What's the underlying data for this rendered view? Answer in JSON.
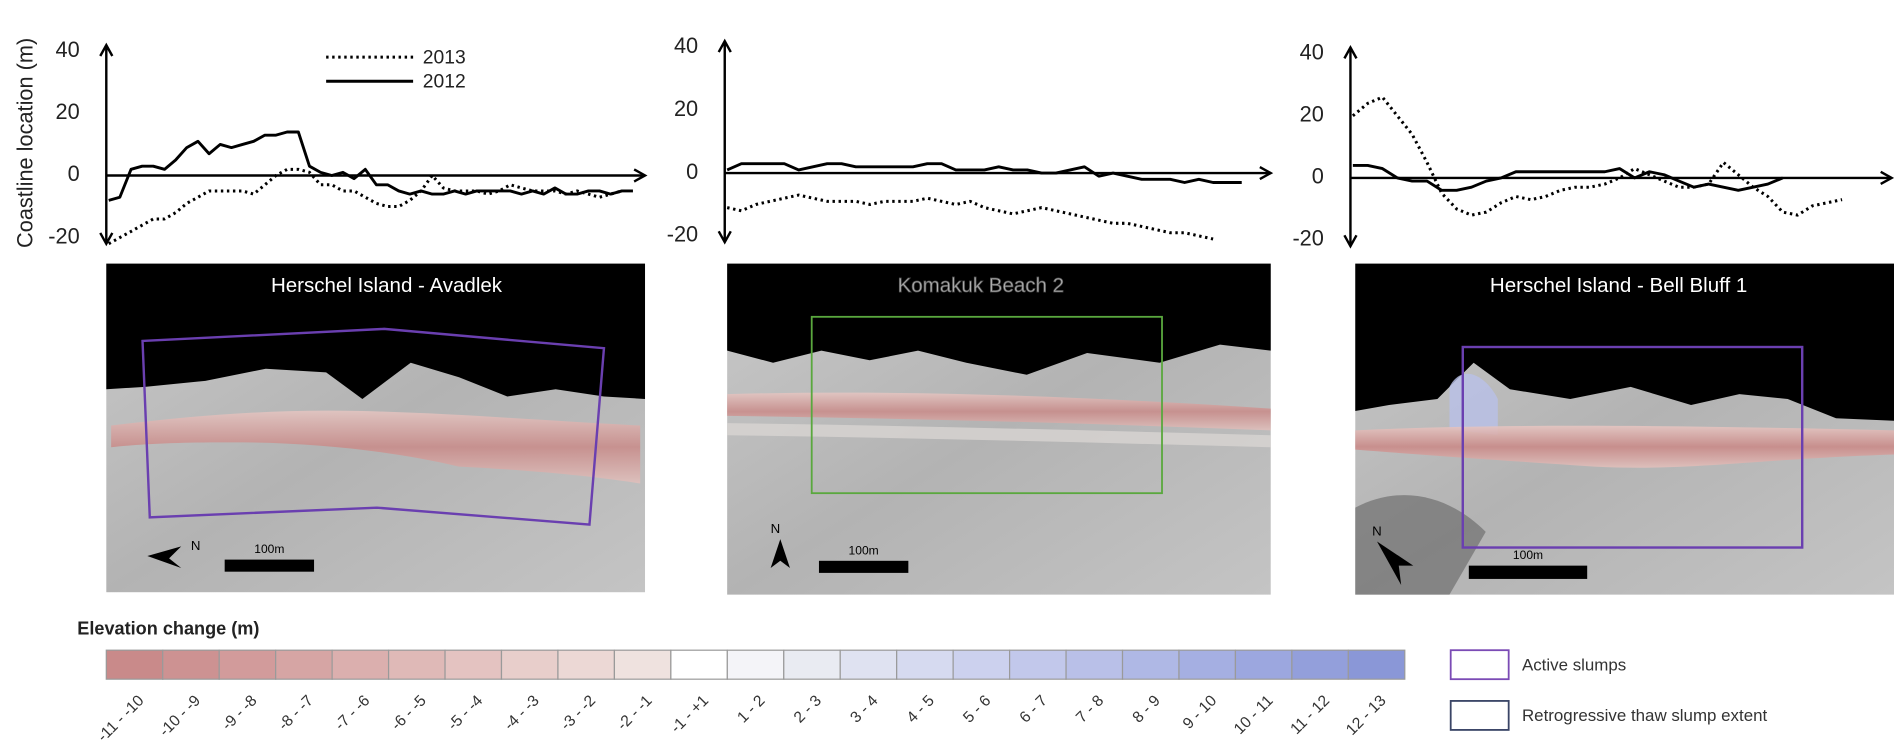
{
  "chart_data": [
    {
      "type": "line",
      "ylabel": "Coastline location (m)",
      "ylim": [
        -22,
        42
      ],
      "yticks": [
        -20,
        0,
        20,
        40
      ],
      "legend": true,
      "series": [
        {
          "name": "2013",
          "style": "dotted",
          "color": "#000000",
          "values": [
            -22,
            -20,
            -18,
            -16,
            -14,
            -14,
            -12,
            -9,
            -7,
            -5,
            -5,
            -5,
            -5,
            -6,
            -3,
            0,
            2,
            2,
            1,
            -3,
            -3,
            -5,
            -5,
            -7,
            -9,
            -10,
            -10,
            -8,
            -5,
            0,
            -4,
            -5,
            -5,
            -5,
            -6,
            -5,
            -3,
            -4,
            -5,
            -5,
            -5,
            -6,
            -5,
            -6,
            -7,
            -6,
            -5,
            null
          ]
        },
        {
          "name": "2012",
          "style": "solid",
          "color": "#000000",
          "values": [
            -8,
            -7,
            2,
            3,
            3,
            2,
            5,
            9,
            11,
            7,
            10,
            9,
            10,
            11,
            13,
            13,
            14,
            14,
            3,
            1,
            0,
            1,
            -1,
            2,
            -3,
            -3,
            -5,
            -6,
            -5,
            -6,
            -6,
            -5,
            -6,
            -5,
            -5,
            -5,
            -5,
            -6,
            -5,
            -6,
            -4,
            -6,
            -6,
            -5,
            -5,
            -6,
            -5,
            -5
          ]
        }
      ]
    },
    {
      "type": "line",
      "ylim": [
        -22,
        42
      ],
      "yticks": [
        -20,
        0,
        20,
        40
      ],
      "series": [
        {
          "style": "dotted",
          "color": "#000000",
          "values": [
            -11,
            -12,
            -10,
            -9,
            -8,
            -7,
            -8,
            -9,
            -9,
            -9,
            -10,
            -9,
            -9,
            -9,
            -8,
            -9,
            -10,
            -9,
            -11,
            -12,
            -13,
            -12,
            -11,
            -12,
            -13,
            -14,
            -15,
            -16,
            -16,
            -17,
            -18,
            -19,
            -19,
            -20,
            -21,
            null,
            null
          ]
        },
        {
          "style": "solid",
          "color": "#000000",
          "values": [
            1,
            3,
            3,
            3,
            3,
            1,
            2,
            3,
            3,
            2,
            2,
            2,
            2,
            2,
            3,
            3,
            1,
            1,
            1,
            2,
            1,
            1,
            0,
            0,
            1,
            2,
            -1,
            0,
            -1,
            -2,
            -2,
            -2,
            -3,
            -2,
            -3,
            -3,
            -3
          ]
        }
      ]
    },
    {
      "type": "line",
      "ylim": [
        -22,
        42
      ],
      "yticks": [
        -20,
        0,
        20,
        40
      ],
      "series": [
        {
          "style": "dotted",
          "color": "#000000",
          "values": [
            20,
            24,
            26,
            20,
            14,
            5,
            -5,
            -10,
            -12,
            -11,
            -8,
            -6,
            -7,
            -6,
            -4,
            -3,
            -3,
            -2,
            0,
            3,
            1,
            -1,
            -3,
            -3,
            -2,
            5,
            1,
            -3,
            -6,
            -11,
            -12,
            -9,
            -8,
            -7
          ]
        },
        {
          "style": "solid",
          "color": "#000000",
          "values": [
            4,
            4,
            3,
            0,
            -1,
            -1,
            -4,
            -4,
            -3,
            -1,
            0,
            2,
            2,
            2,
            2,
            2,
            2,
            2,
            3,
            0,
            2,
            1,
            -1,
            -3,
            -2,
            -3,
            -4,
            -3,
            -2,
            0,
            null,
            null,
            null,
            null
          ]
        }
      ]
    }
  ],
  "maps": [
    {
      "title": "Herschel Island - Avadlek",
      "scale_label": "100m",
      "north": "N"
    },
    {
      "title": "Komakuk Beach 2",
      "scale_label": "100m",
      "north": "N"
    },
    {
      "title": "Herschel Island - Bell Bluff 1",
      "scale_label": "100m",
      "north": "N"
    }
  ],
  "legend": {
    "title": "Elevation change (m)",
    "classes": [
      {
        "label": "-11 - -10",
        "color": "#c98a8a"
      },
      {
        "label": "-10 - -9",
        "color": "#cd9292"
      },
      {
        "label": "-9 - -8",
        "color": "#d29b9b"
      },
      {
        "label": "-8 - -7",
        "color": "#d6a5a4"
      },
      {
        "label": "-7 - -6",
        "color": "#dbafae"
      },
      {
        "label": "-6 - -5",
        "color": "#dfb9b7"
      },
      {
        "label": "-5 - -4",
        "color": "#e4c3c1"
      },
      {
        "label": "-4 - -3",
        "color": "#e8cecb"
      },
      {
        "label": "-3 - -2",
        "color": "#ecd8d5"
      },
      {
        "label": "-2 - -1",
        "color": "#efe2df"
      },
      {
        "label": "-1 - +1",
        "color": "#ffffff"
      },
      {
        "label": "1 - 2",
        "color": "#f4f4f8"
      },
      {
        "label": "2 - 3",
        "color": "#e9ebf2"
      },
      {
        "label": "3 - 4",
        "color": "#dfe2f1"
      },
      {
        "label": "4 - 5",
        "color": "#d6daf0"
      },
      {
        "label": "5 - 6",
        "color": "#ccd1ee"
      },
      {
        "label": "6 - 7",
        "color": "#c2c8eb"
      },
      {
        "label": "7 - 8",
        "color": "#b9c0e8"
      },
      {
        "label": "8 - 9",
        "color": "#afb8e5"
      },
      {
        "label": "9 - 10",
        "color": "#a5afe2"
      },
      {
        "label": "10 - 11",
        "color": "#9ca7df"
      },
      {
        "label": "11 - 12",
        "color": "#939fdb"
      },
      {
        "label": "12 - 13",
        "color": "#8a97d7"
      }
    ],
    "outlines": [
      {
        "label": "Active slumps",
        "color": "#7b4bb5"
      },
      {
        "label": "Retrogressive thaw slump extent",
        "color": "#3a4566"
      }
    ]
  }
}
